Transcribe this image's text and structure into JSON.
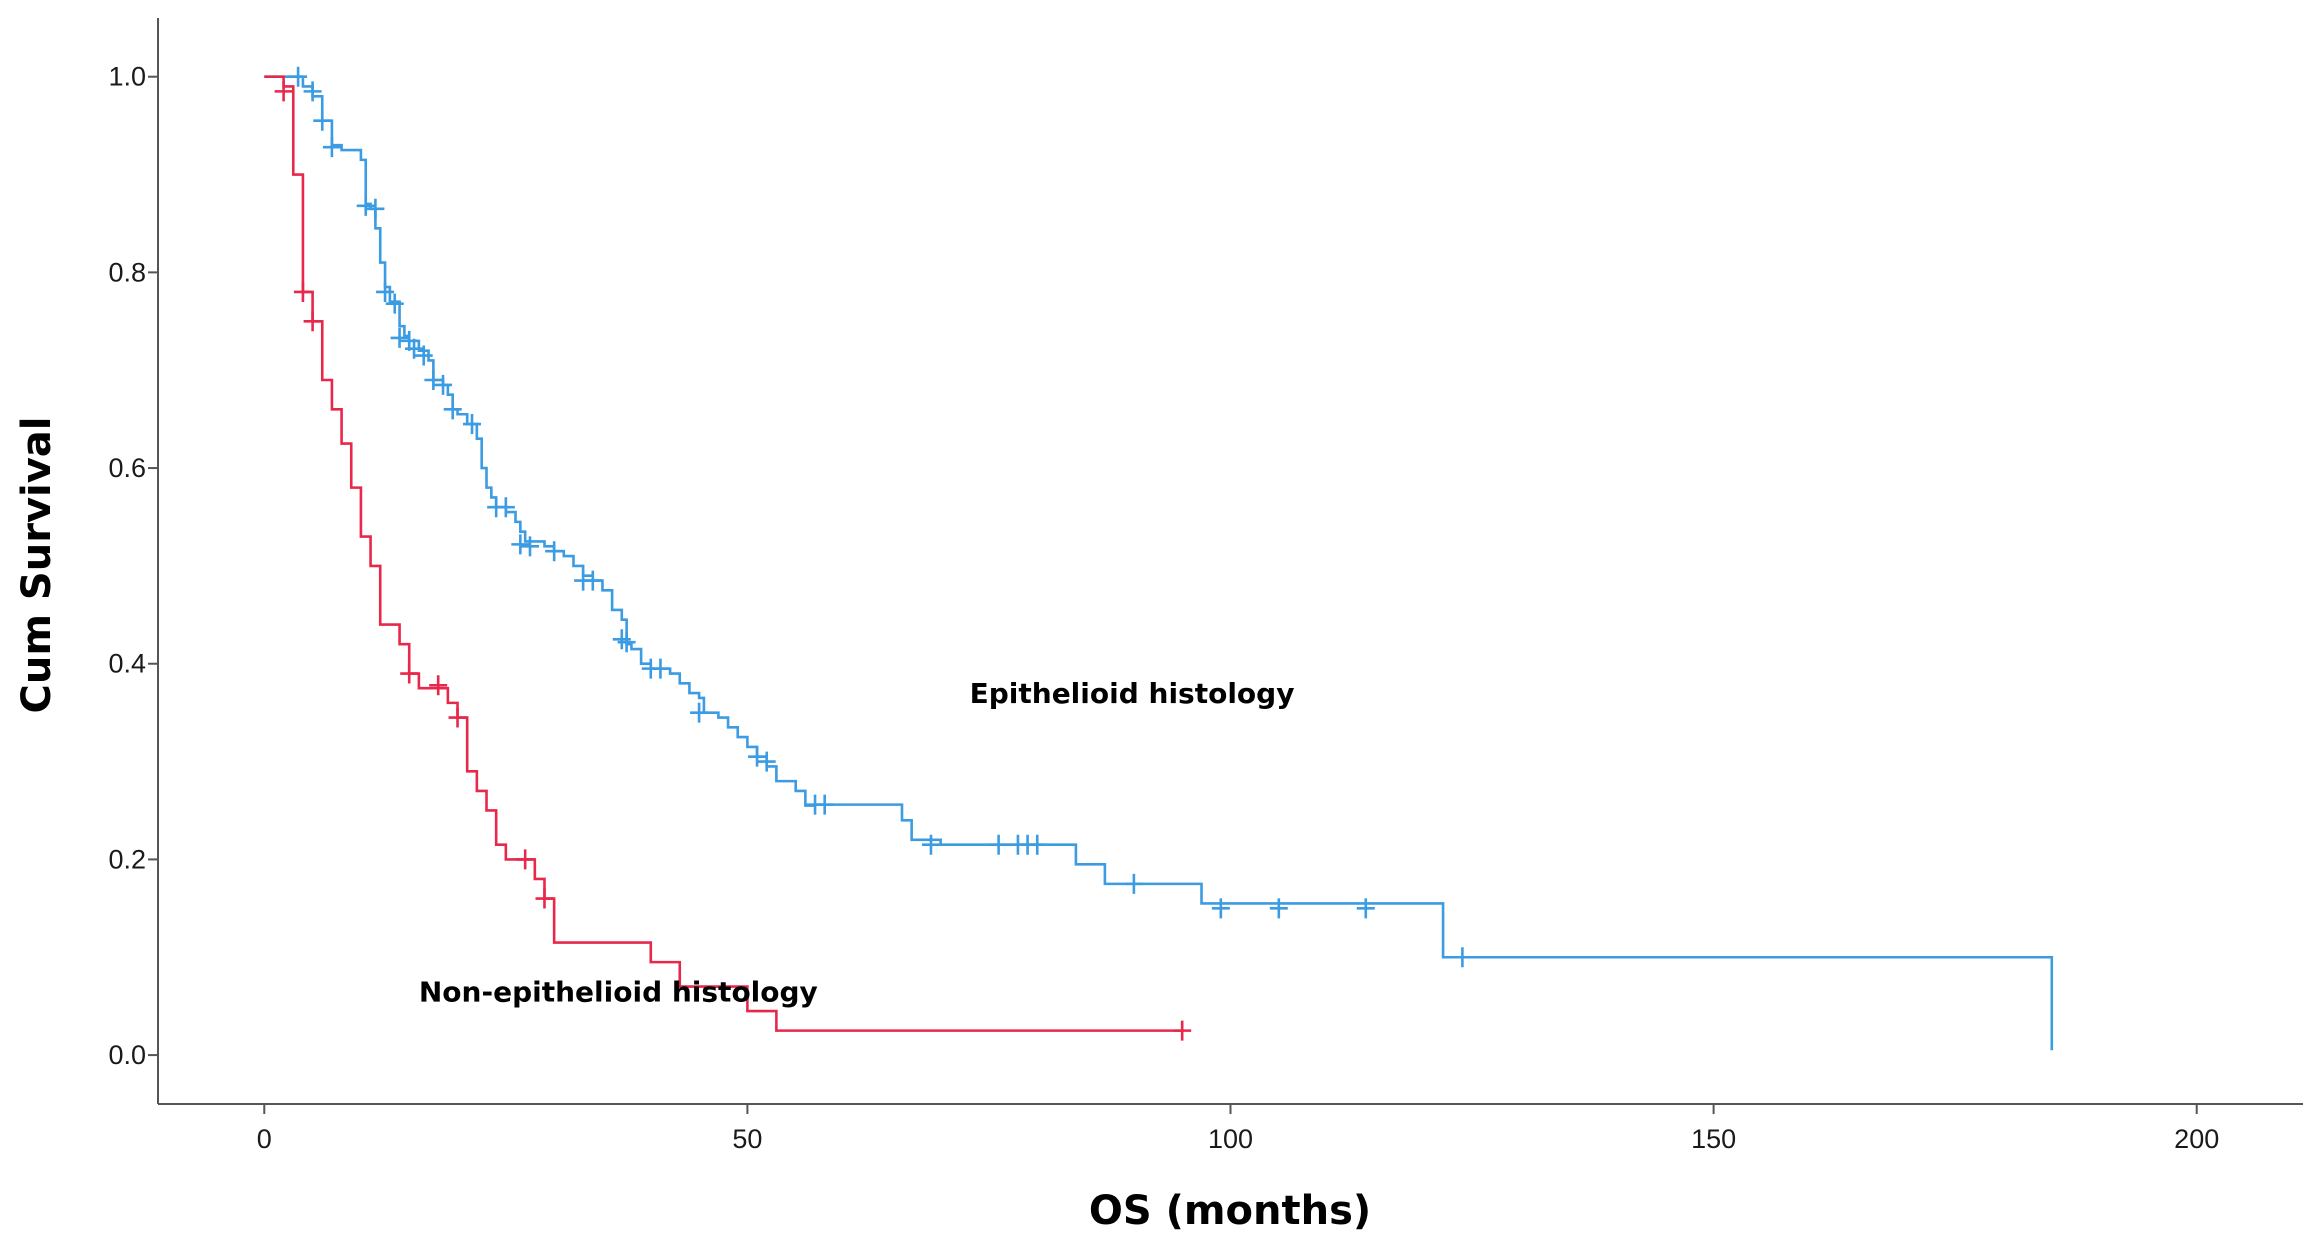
{
  "chart_data": {
    "type": "line",
    "subtype": "kaplan-meier",
    "xlabel": "OS (months)",
    "ylabel": "Cum Survival",
    "xlim": [
      -11,
      211
    ],
    "ylim": [
      -0.05,
      1.06
    ],
    "xticks": [
      0,
      50,
      100,
      150,
      200
    ],
    "yticks": [
      0.0,
      0.2,
      0.4,
      0.6,
      0.8,
      1.0
    ],
    "xtick_labels": [
      "0",
      "50",
      "100",
      "150",
      "200"
    ],
    "ytick_labels": [
      "0.0",
      "0.2",
      "0.4",
      "0.6",
      "0.8",
      "1.0"
    ],
    "grid": false,
    "series": [
      {
        "name": "Epithelioid histology",
        "color": "#3b9be3",
        "steps": [
          [
            0,
            1.0
          ],
          [
            4,
            0.99
          ],
          [
            5,
            0.98
          ],
          [
            6,
            0.955
          ],
          [
            7,
            0.93
          ],
          [
            8,
            0.925
          ],
          [
            10,
            0.915
          ],
          [
            10.5,
            0.87
          ],
          [
            11,
            0.865
          ],
          [
            11.5,
            0.845
          ],
          [
            12,
            0.81
          ],
          [
            12.5,
            0.785
          ],
          [
            13,
            0.77
          ],
          [
            14,
            0.745
          ],
          [
            14.5,
            0.735
          ],
          [
            15,
            0.73
          ],
          [
            16,
            0.72
          ],
          [
            17,
            0.71
          ],
          [
            17.5,
            0.69
          ],
          [
            18.5,
            0.685
          ],
          [
            19,
            0.675
          ],
          [
            19.5,
            0.66
          ],
          [
            20,
            0.655
          ],
          [
            21,
            0.645
          ],
          [
            22,
            0.63
          ],
          [
            22.5,
            0.6
          ],
          [
            23,
            0.58
          ],
          [
            23.5,
            0.57
          ],
          [
            24,
            0.56
          ],
          [
            25,
            0.555
          ],
          [
            26,
            0.545
          ],
          [
            26.5,
            0.535
          ],
          [
            27,
            0.525
          ],
          [
            29,
            0.52
          ],
          [
            30,
            0.515
          ],
          [
            31,
            0.51
          ],
          [
            32,
            0.5
          ],
          [
            33,
            0.49
          ],
          [
            34,
            0.485
          ],
          [
            35,
            0.475
          ],
          [
            36,
            0.455
          ],
          [
            37,
            0.445
          ],
          [
            37.5,
            0.42
          ],
          [
            38,
            0.415
          ],
          [
            39,
            0.4
          ],
          [
            40,
            0.395
          ],
          [
            42,
            0.39
          ],
          [
            43,
            0.38
          ],
          [
            44,
            0.37
          ],
          [
            45,
            0.365
          ],
          [
            45.5,
            0.35
          ],
          [
            47,
            0.345
          ],
          [
            48,
            0.335
          ],
          [
            49,
            0.325
          ],
          [
            50,
            0.315
          ],
          [
            51,
            0.305
          ],
          [
            52,
            0.295
          ],
          [
            53,
            0.28
          ],
          [
            55,
            0.27
          ],
          [
            56,
            0.255
          ],
          [
            57,
            0.256
          ],
          [
            66,
            0.24
          ],
          [
            67,
            0.22
          ],
          [
            70,
            0.215
          ],
          [
            79,
            0.215
          ],
          [
            84,
            0.195
          ],
          [
            87,
            0.175
          ],
          [
            97,
            0.155
          ],
          [
            122,
            0.1
          ],
          [
            185,
            0.1
          ],
          [
            185,
            0.005
          ]
        ],
        "censored": [
          [
            3.5,
            1.0
          ],
          [
            5,
            0.985
          ],
          [
            6,
            0.955
          ],
          [
            7,
            0.928
          ],
          [
            10.5,
            0.868
          ],
          [
            11.5,
            0.865
          ],
          [
            12.5,
            0.78
          ],
          [
            13.5,
            0.768
          ],
          [
            14,
            0.733
          ],
          [
            15,
            0.73
          ],
          [
            15.5,
            0.722
          ],
          [
            16.5,
            0.715
          ],
          [
            17.5,
            0.69
          ],
          [
            18.5,
            0.685
          ],
          [
            19.5,
            0.66
          ],
          [
            21.5,
            0.645
          ],
          [
            24,
            0.56
          ],
          [
            25,
            0.56
          ],
          [
            26.5,
            0.522
          ],
          [
            27.5,
            0.52
          ],
          [
            30,
            0.515
          ],
          [
            33,
            0.485
          ],
          [
            34,
            0.485
          ],
          [
            37,
            0.425
          ],
          [
            37.5,
            0.422
          ],
          [
            40,
            0.395
          ],
          [
            41,
            0.395
          ],
          [
            45,
            0.35
          ],
          [
            51,
            0.305
          ],
          [
            52,
            0.3
          ],
          [
            57,
            0.256
          ],
          [
            58,
            0.256
          ],
          [
            69,
            0.215
          ],
          [
            76,
            0.215
          ],
          [
            78,
            0.215
          ],
          [
            79,
            0.215
          ],
          [
            80,
            0.215
          ],
          [
            90,
            0.175
          ],
          [
            99,
            0.15
          ],
          [
            105,
            0.15
          ],
          [
            114,
            0.15
          ],
          [
            124,
            0.1
          ]
        ]
      },
      {
        "name": "Non-epithelioid histology",
        "color": "#e8284b",
        "steps": [
          [
            0,
            1.0
          ],
          [
            2,
            0.99
          ],
          [
            3,
            0.9
          ],
          [
            4,
            0.78
          ],
          [
            5,
            0.75
          ],
          [
            6,
            0.69
          ],
          [
            7,
            0.66
          ],
          [
            8,
            0.625
          ],
          [
            9,
            0.58
          ],
          [
            10,
            0.53
          ],
          [
            11,
            0.5
          ],
          [
            12,
            0.44
          ],
          [
            14,
            0.42
          ],
          [
            15,
            0.39
          ],
          [
            16,
            0.375
          ],
          [
            18,
            0.375
          ],
          [
            19,
            0.36
          ],
          [
            20,
            0.345
          ],
          [
            21,
            0.29
          ],
          [
            22,
            0.27
          ],
          [
            23,
            0.25
          ],
          [
            24,
            0.215
          ],
          [
            25,
            0.2
          ],
          [
            27,
            0.2
          ],
          [
            28,
            0.18
          ],
          [
            29,
            0.16
          ],
          [
            30,
            0.115
          ],
          [
            40,
            0.095
          ],
          [
            43,
            0.07
          ],
          [
            50,
            0.045
          ],
          [
            53,
            0.025
          ],
          [
            95,
            0.025
          ]
        ],
        "censored": [
          [
            2,
            0.985
          ],
          [
            4,
            0.78
          ],
          [
            5,
            0.75
          ],
          [
            15,
            0.39
          ],
          [
            18,
            0.378
          ],
          [
            20,
            0.345
          ],
          [
            27,
            0.2
          ],
          [
            29,
            0.16
          ],
          [
            95,
            0.025
          ]
        ]
      }
    ],
    "annotations": [
      {
        "text": "Epithelioid histology",
        "x": 73,
        "y": 0.36
      },
      {
        "text": "Non-epithelioid histology",
        "x": 16,
        "y": 0.055
      }
    ]
  }
}
